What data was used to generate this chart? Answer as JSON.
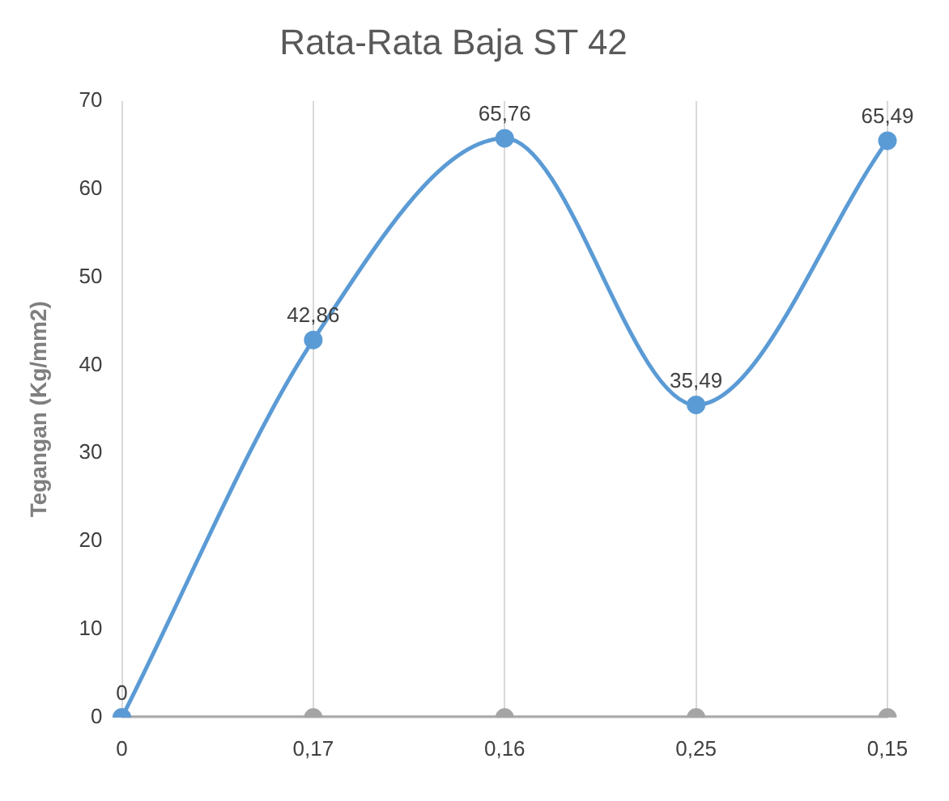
{
  "chart_data": {
    "type": "line",
    "title": "Rata-Rata Baja ST 42",
    "ylabel": "Tegangan (Kg/mm2)",
    "categories": [
      "0",
      "0,17",
      "0,16",
      "0,25",
      "0,15"
    ],
    "series": [
      {
        "color": "#5b9bd5",
        "values": [
          0,
          42.86,
          65.76,
          35.49,
          65.49
        ],
        "value_labels": [
          "0",
          "42,86",
          "65,76",
          "35,49",
          "65,49"
        ]
      },
      {
        "color": "#a5a5a5",
        "values": [
          0,
          0,
          0,
          0,
          0
        ]
      }
    ],
    "ylim": [
      0,
      70
    ],
    "yticks": [
      0,
      10,
      20,
      30,
      40,
      50,
      60,
      70
    ],
    "grid": "x",
    "marker": "circle",
    "line_style": "solid",
    "legend": false
  }
}
